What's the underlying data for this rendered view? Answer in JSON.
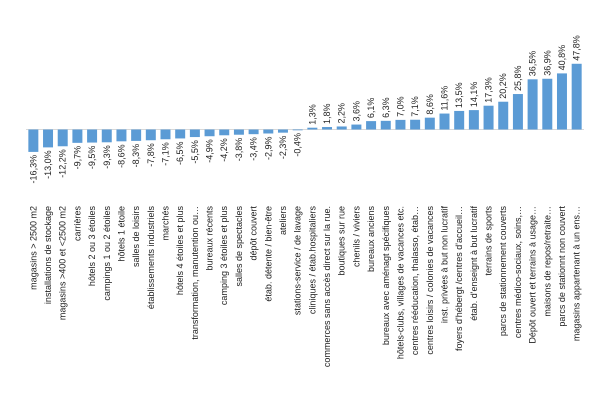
{
  "chart_data": {
    "type": "bar",
    "orientation": "vertical",
    "color": "#5b9bd5",
    "value_suffix": "%",
    "decimal_separator": ",",
    "ylim": [
      -20,
      50
    ],
    "grid": false,
    "legend": "none",
    "title": "",
    "xlabel": "",
    "ylabel": "",
    "categories": [
      "magasins > 2500 m2",
      "installations de stockage",
      "magasins >400 et <2500 m2",
      "carrières",
      "hôtels 2 ou 3 étoiles",
      "campings 1 ou 2 étoiles",
      "hôtels 1 étoile",
      "salles de loisirs",
      "établissements industriels",
      "marchés",
      "hôtels 4 étoiles et plus",
      "transformation, manutention ou…",
      "bureaux récents",
      "camping 3 étoiles et plus",
      "salles de spectacles",
      "dépôt couvert",
      "étab. détente / bien-être",
      "ateliers",
      "stations-service / de lavage",
      "cliniques / étab.hospitaliers",
      "commerces sans accès direct sur la rue.",
      "boutiques sur rue",
      "chenils / viviers",
      "bureaux anciens",
      "bureaux avec aménagt spécifiques",
      "hôtels-clubs, villages de vacances etc.",
      "centres rééducation, thalasso, étab…",
      "centres loisirs / colonies de vacances",
      "inst. privées à but non lucratif",
      "foyers d'hébergt /centres d'accueil…",
      "étab. d'enseignt à but lucratif",
      "terrains de sports",
      "parcs de stationnement couverts",
      "centres médico-sociaux, soins,…",
      "Dépôt ouvert et terrains à usage…",
      "maisons de repos/retraite…",
      "parcs de stationnt non couvert",
      "magasins appartenant à un ens…"
    ],
    "values": [
      -16.3,
      -13.0,
      -12.2,
      -9.7,
      -9.5,
      -9.3,
      -8.6,
      -8.3,
      -7.8,
      -7.1,
      -6.5,
      -5.5,
      -4.9,
      -4.2,
      -3.8,
      -3.4,
      -2.9,
      -2.3,
      -0.4,
      1.3,
      1.8,
      2.2,
      3.6,
      6.1,
      6.3,
      7.0,
      7.1,
      8.6,
      11.6,
      13.5,
      14.1,
      17.3,
      20.2,
      25.8,
      36.5,
      36.9,
      40.8,
      47.8
    ],
    "data_labels": [
      "-16,3%",
      "-13,0%",
      "-12,2%",
      "-9,7%",
      "-9,5%",
      "-9,3%",
      "-8,6%",
      "-8,3%",
      "-7,8%",
      "-7,1%",
      "-6,5%",
      "-5,5%",
      "-4,9%",
      "-4,2%",
      "-3,8%",
      "-3,4%",
      "-2,9%",
      "-2,3%",
      "-0,4%",
      "1,3%",
      "1,8%",
      "2,2%",
      "3,6%",
      "6,1%",
      "6,3%",
      "7,0%",
      "7,1%",
      "8,6%",
      "11,6%",
      "13,5%",
      "14,1%",
      "17,3%",
      "20,2%",
      "25,8%",
      "36,5%",
      "36,9%",
      "40,8%",
      "47,8%"
    ]
  }
}
